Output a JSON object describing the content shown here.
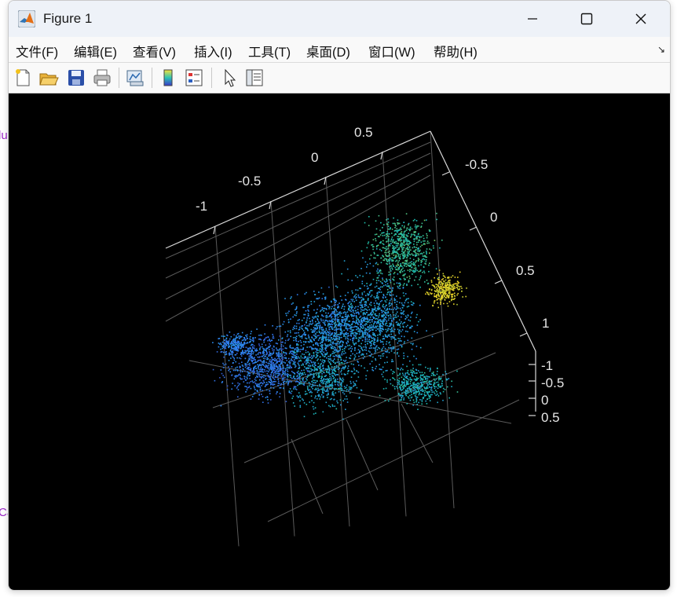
{
  "window": {
    "title": "Figure 1"
  },
  "menu": {
    "items": [
      "文件(F)",
      "编辑(E)",
      "查看(V)",
      "插入(I)",
      "工具(T)",
      "桌面(D)",
      "窗口(W)",
      "帮助(H)"
    ]
  },
  "toolbar": {
    "icons": [
      "new-figure-icon",
      "open-file-icon",
      "save-icon",
      "print-icon",
      "link-plot-icon",
      "insert-colorbar-icon",
      "insert-legend-icon",
      "pointer-icon",
      "property-inspector-icon"
    ]
  },
  "background_text": {
    "top": "lu",
    "bottom": "Ca"
  },
  "colors": {
    "canvas": "#000000",
    "axes": "#d9d9d9",
    "tick_text": "#e6e6e6"
  },
  "chart_data": {
    "type": "scatter",
    "projection": "3d",
    "colormap": "parula",
    "x_ticks": [
      "-1",
      "-0.5",
      "0",
      "0.5"
    ],
    "y_ticks": [
      "-0.5",
      "0",
      "0.5",
      "1"
    ],
    "z_ticks": [
      "-1",
      "-0.5",
      "0",
      "0.5"
    ],
    "grid": true,
    "title": "",
    "xlabel": "",
    "ylabel": "",
    "zlabel": ""
  }
}
